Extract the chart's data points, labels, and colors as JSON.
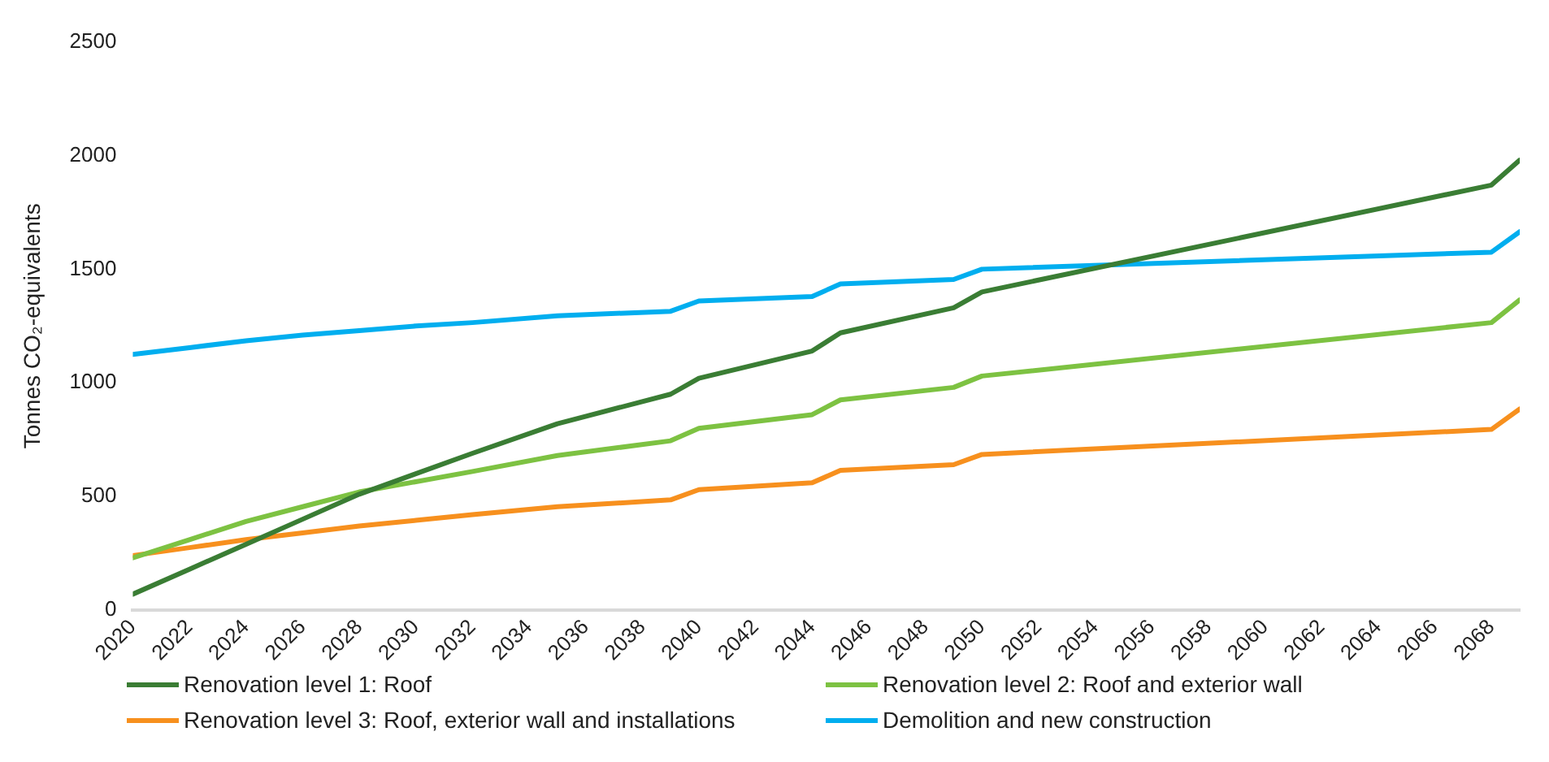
{
  "chart_data": {
    "type": "line",
    "ylabel": "Tonnes CO₂-equivalents",
    "x": [
      2020,
      2022,
      2024,
      2026,
      2028,
      2030,
      2032,
      2035,
      2039,
      2040,
      2044,
      2045,
      2049,
      2050,
      2068,
      2069
    ],
    "series": [
      {
        "name": "Renovation level 1: Roof",
        "color": "#3a7d34",
        "values": [
          70,
          180,
          290,
          400,
          510,
          600,
          690,
          820,
          950,
          1020,
          1140,
          1220,
          1330,
          1400,
          1870,
          1980
        ]
      },
      {
        "name": "Renovation level 2: Roof and exterior wall",
        "color": "#7dc242",
        "values": [
          230,
          310,
          390,
          455,
          520,
          565,
          610,
          680,
          745,
          800,
          860,
          925,
          980,
          1030,
          1265,
          1365
        ]
      },
      {
        "name": "Renovation level 3: Roof, exterior wall and installations",
        "color": "#f7901e",
        "values": [
          240,
          275,
          310,
          340,
          370,
          395,
          420,
          455,
          485,
          530,
          560,
          615,
          640,
          685,
          795,
          885
        ]
      },
      {
        "name": "Demolition and new construction",
        "color": "#00aeef",
        "values": [
          1125,
          1155,
          1185,
          1210,
          1230,
          1250,
          1265,
          1295,
          1315,
          1360,
          1380,
          1435,
          1455,
          1500,
          1575,
          1665
        ]
      }
    ],
    "xlim": [
      2020,
      2069
    ],
    "xticks": [
      2020,
      2022,
      2024,
      2026,
      2028,
      2030,
      2032,
      2034,
      2036,
      2038,
      2040,
      2042,
      2044,
      2046,
      2048,
      2050,
      2052,
      2054,
      2056,
      2058,
      2060,
      2062,
      2064,
      2066,
      2068
    ],
    "ylim": [
      0,
      2500
    ],
    "yticks": [
      0,
      500,
      1000,
      1500,
      2000,
      2500
    ],
    "grid": false,
    "legend": "bottom",
    "marker": "none",
    "line_style": "solid"
  }
}
